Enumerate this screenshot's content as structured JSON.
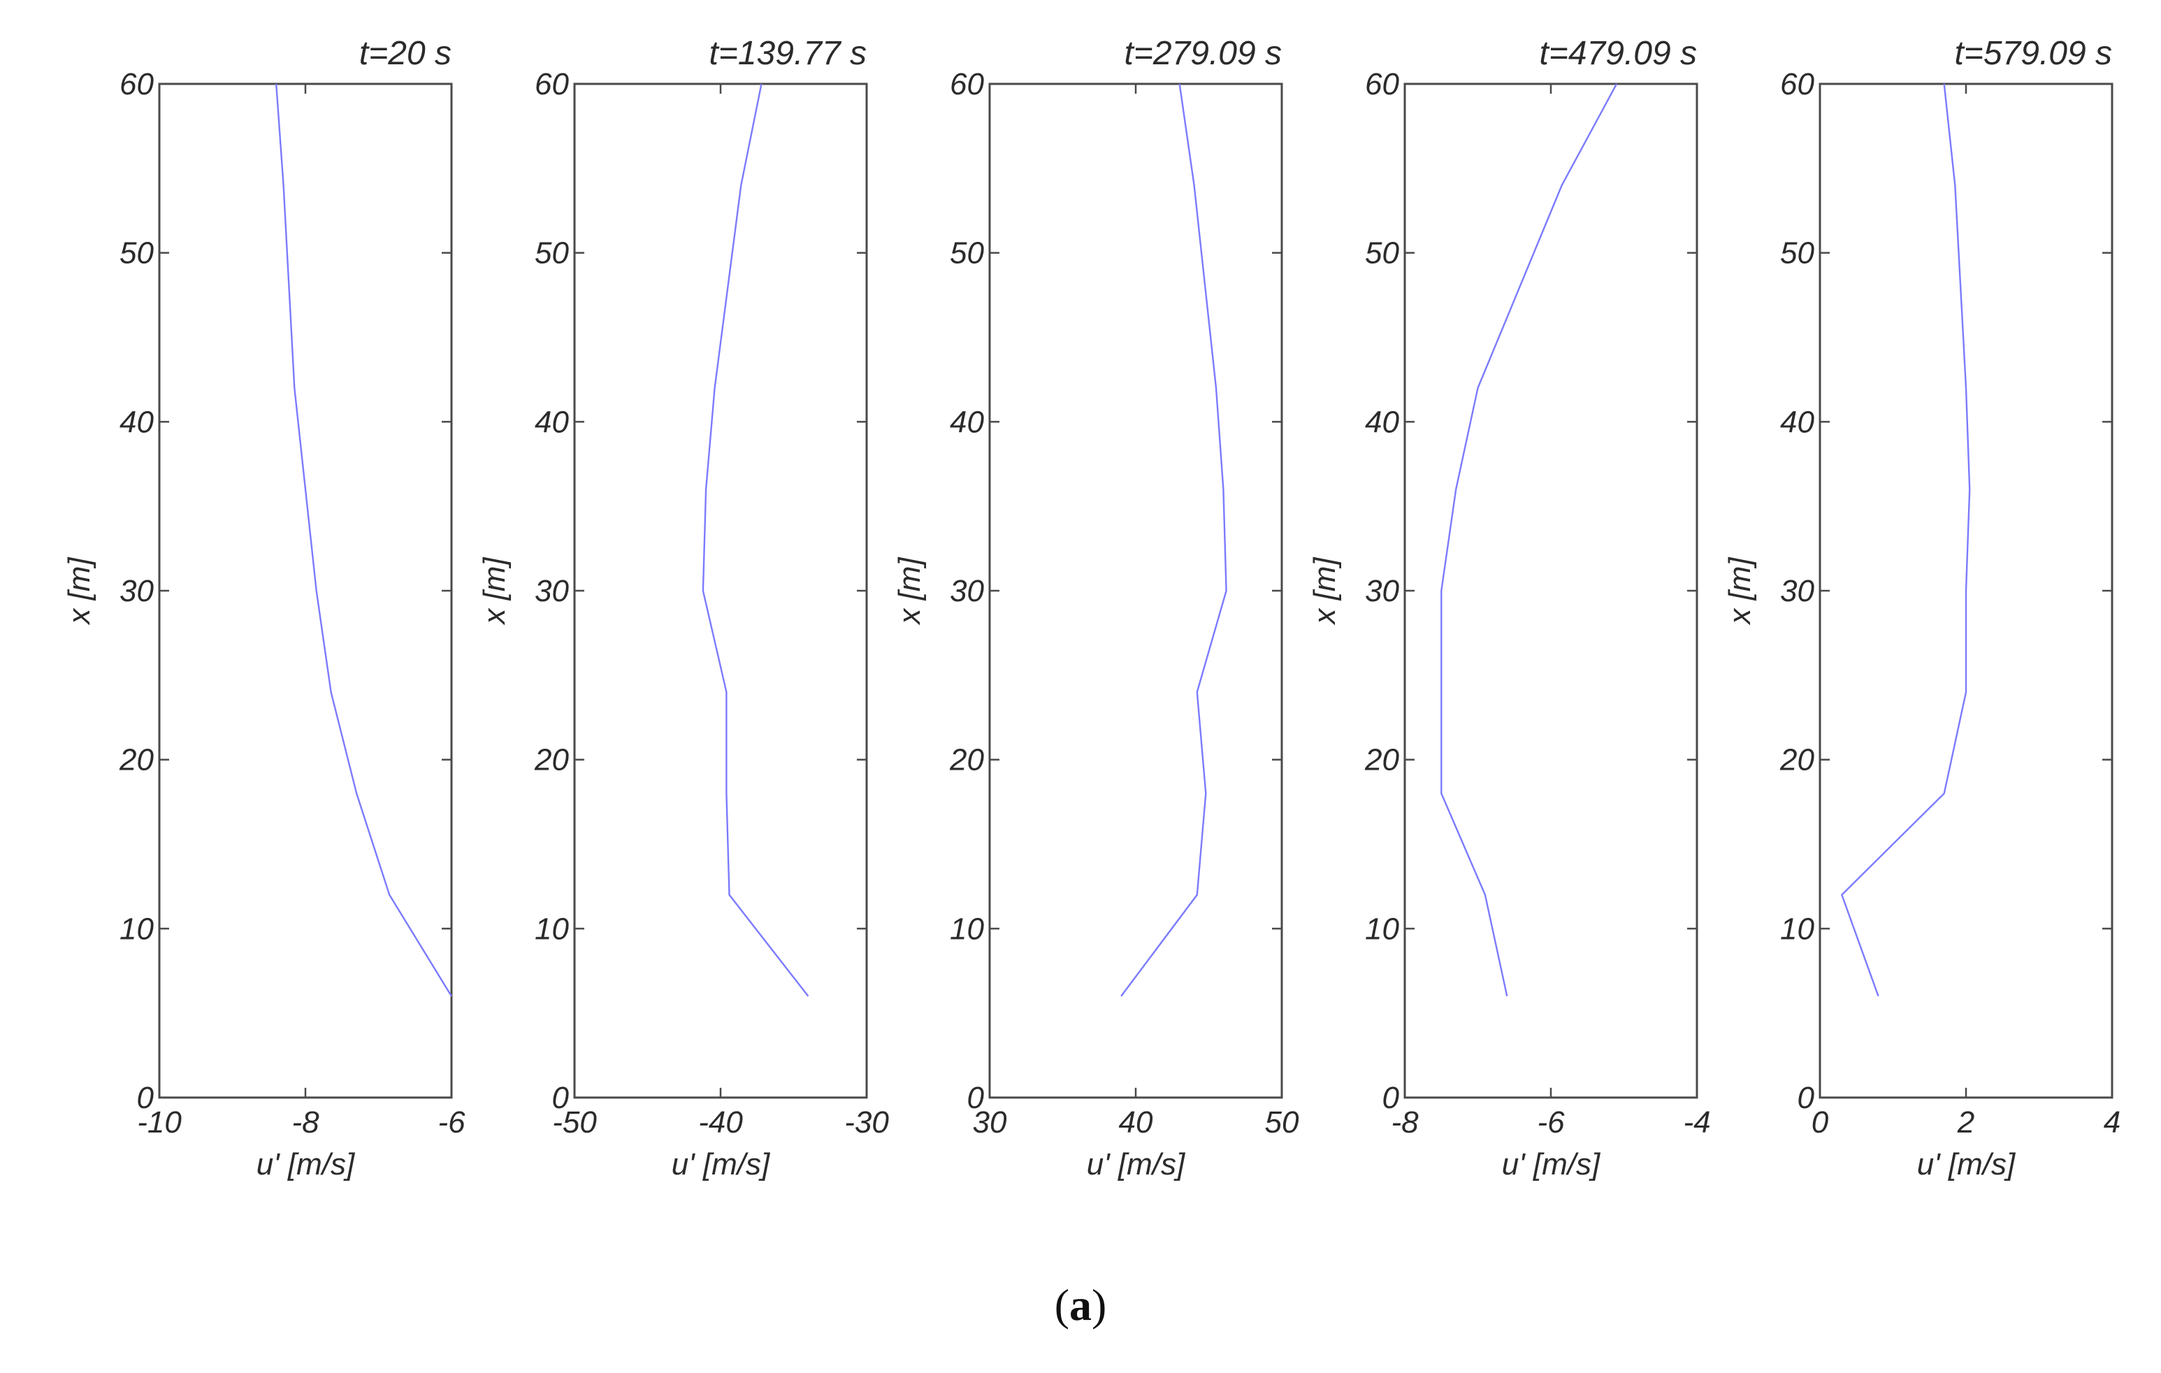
{
  "caption": {
    "open": "(",
    "letter": "a",
    "close": ")"
  },
  "line_color": "#7b7bff",
  "chart_data": [
    {
      "type": "line",
      "title": "t=20 s",
      "xlabel": "u' [m/s]",
      "ylabel": "x [m]",
      "xlim": [
        -10,
        -6
      ],
      "ylim": [
        0,
        60
      ],
      "xticks": [
        -10,
        -8,
        -6
      ],
      "xtick_labels": [
        "-10",
        "-8",
        "-6"
      ],
      "yticks": [
        0,
        10,
        20,
        30,
        40,
        50,
        60
      ],
      "ytick_labels": [
        "0",
        "10",
        "20",
        "30",
        "40",
        "50",
        "60"
      ],
      "series": [
        {
          "x": [
            -6.0,
            -6.85,
            -7.3,
            -7.65,
            -7.85,
            -8.0,
            -8.15,
            -8.3,
            -8.4
          ],
          "y": [
            6,
            12,
            18,
            24,
            30,
            36,
            42,
            54,
            60
          ]
        }
      ]
    },
    {
      "type": "line",
      "title": "t=139.77 s",
      "xlabel": "u' [m/s]",
      "ylabel": "x [m]",
      "xlim": [
        -50,
        -30
      ],
      "ylim": [
        0,
        60
      ],
      "xticks": [
        -50,
        -40,
        -30
      ],
      "xtick_labels": [
        "-50",
        "-40",
        "-30"
      ],
      "yticks": [
        0,
        10,
        20,
        30,
        40,
        50,
        60
      ],
      "ytick_labels": [
        "0",
        "10",
        "20",
        "30",
        "40",
        "50",
        "60"
      ],
      "series": [
        {
          "x": [
            -34.0,
            -39.4,
            -39.6,
            -39.6,
            -41.2,
            -41.0,
            -40.4,
            -38.6,
            -37.2
          ],
          "y": [
            6,
            12,
            18,
            24,
            30,
            36,
            42,
            54,
            60
          ]
        }
      ]
    },
    {
      "type": "line",
      "title": "t=279.09 s",
      "xlabel": "u' [m/s]",
      "ylabel": "x [m]",
      "xlim": [
        30,
        50
      ],
      "ylim": [
        0,
        60
      ],
      "xticks": [
        30,
        40,
        50
      ],
      "xtick_labels": [
        "30",
        "40",
        "50"
      ],
      "yticks": [
        0,
        10,
        20,
        30,
        40,
        50,
        60
      ],
      "ytick_labels": [
        "0",
        "10",
        "20",
        "30",
        "40",
        "50",
        "60"
      ],
      "series": [
        {
          "x": [
            39.0,
            44.2,
            44.8,
            44.2,
            46.2,
            46.0,
            45.5,
            44.0,
            43.0
          ],
          "y": [
            6,
            12,
            18,
            24,
            30,
            36,
            42,
            54,
            60
          ]
        }
      ]
    },
    {
      "type": "line",
      "title": "t=479.09 s",
      "xlabel": "u' [m/s]",
      "ylabel": "x [m]",
      "xlim": [
        -8,
        -4
      ],
      "ylim": [
        0,
        60
      ],
      "xticks": [
        -8,
        -6,
        -4
      ],
      "xtick_labels": [
        "-8",
        "-6",
        "-4"
      ],
      "yticks": [
        0,
        10,
        20,
        30,
        40,
        50,
        60
      ],
      "ytick_labels": [
        "0",
        "10",
        "20",
        "30",
        "40",
        "50",
        "60"
      ],
      "series": [
        {
          "x": [
            -6.6,
            -6.9,
            -7.5,
            -7.5,
            -7.5,
            -7.3,
            -7.0,
            -5.85,
            -5.1
          ],
          "y": [
            6,
            12,
            18,
            24,
            30,
            36,
            42,
            54,
            60
          ]
        }
      ]
    },
    {
      "type": "line",
      "title": "t=579.09 s",
      "xlabel": "u' [m/s]",
      "ylabel": "x [m]",
      "xlim": [
        0,
        4
      ],
      "ylim": [
        0,
        60
      ],
      "xticks": [
        0,
        2,
        4
      ],
      "xtick_labels": [
        "0",
        "2",
        "4"
      ],
      "yticks": [
        0,
        10,
        20,
        30,
        40,
        50,
        60
      ],
      "ytick_labels": [
        "0",
        "10",
        "20",
        "30",
        "40",
        "50",
        "60"
      ],
      "series": [
        {
          "x": [
            0.8,
            0.3,
            1.7,
            2.0,
            2.0,
            2.05,
            2.0,
            1.85,
            1.7
          ],
          "y": [
            6,
            12,
            18,
            24,
            30,
            36,
            42,
            54,
            60
          ]
        }
      ]
    }
  ]
}
